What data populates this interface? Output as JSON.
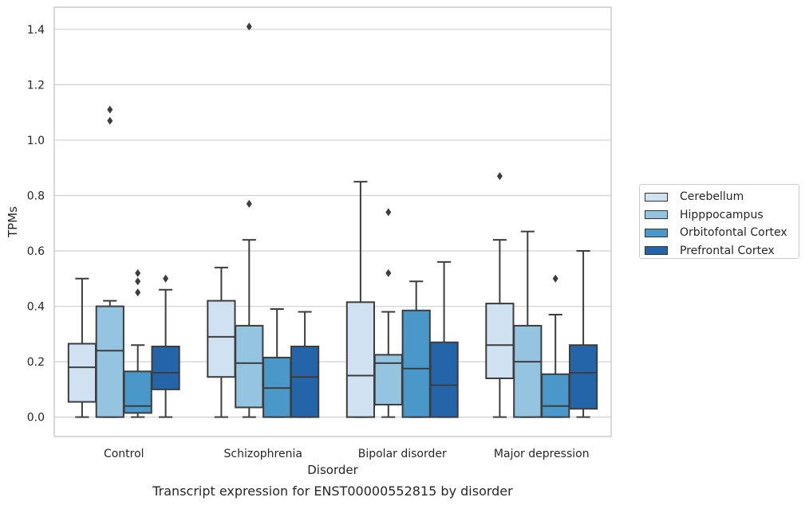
{
  "chart_data": {
    "type": "box",
    "title": "Transcript expression for ENST00000552815 by disorder",
    "xlabel": "Disorder",
    "ylabel": "TPMs",
    "ylim": [
      -0.07,
      1.48
    ],
    "yticks": [
      "0.0",
      "0.2",
      "0.4",
      "0.6",
      "0.8",
      "1.0",
      "1.2",
      "1.4"
    ],
    "grid": true,
    "legend_position": "right",
    "categories": [
      "Control",
      "Schizophrenia",
      "Bipolar disorder",
      "Major depression"
    ],
    "series": [
      {
        "name": "Cerebellum",
        "color": "#d0e1f2",
        "boxes": [
          {
            "whisker_low": 0.0,
            "q1": 0.055,
            "median": 0.18,
            "q3": 0.265,
            "whisker_high": 0.5,
            "outliers": []
          },
          {
            "whisker_low": 0.0,
            "q1": 0.145,
            "median": 0.29,
            "q3": 0.42,
            "whisker_high": 0.54,
            "outliers": []
          },
          {
            "whisker_low": 0.0,
            "q1": 0.0,
            "median": 0.15,
            "q3": 0.415,
            "whisker_high": 0.85,
            "outliers": []
          },
          {
            "whisker_low": 0.0,
            "q1": 0.14,
            "median": 0.26,
            "q3": 0.41,
            "whisker_high": 0.64,
            "outliers": [
              0.87
            ]
          }
        ]
      },
      {
        "name": "Hipppocampus",
        "color": "#94c4df",
        "boxes": [
          {
            "whisker_low": 0.0,
            "q1": 0.0,
            "median": 0.24,
            "q3": 0.4,
            "whisker_high": 0.42,
            "outliers": [
              1.07,
              1.11
            ]
          },
          {
            "whisker_low": 0.0,
            "q1": 0.035,
            "median": 0.195,
            "q3": 0.33,
            "whisker_high": 0.64,
            "outliers": [
              0.77,
              1.41
            ]
          },
          {
            "whisker_low": 0.0,
            "q1": 0.045,
            "median": 0.195,
            "q3": 0.225,
            "whisker_high": 0.38,
            "outliers": [
              0.52,
              0.74
            ]
          },
          {
            "whisker_low": 0.0,
            "q1": 0.0,
            "median": 0.2,
            "q3": 0.33,
            "whisker_high": 0.67,
            "outliers": []
          }
        ]
      },
      {
        "name": "Orbitofontal Cortex",
        "color": "#4a98c9",
        "boxes": [
          {
            "whisker_low": 0.0,
            "q1": 0.015,
            "median": 0.04,
            "q3": 0.165,
            "whisker_high": 0.26,
            "outliers": [
              0.45,
              0.49,
              0.52
            ]
          },
          {
            "whisker_low": 0.0,
            "q1": 0.0,
            "median": 0.105,
            "q3": 0.215,
            "whisker_high": 0.39,
            "outliers": []
          },
          {
            "whisker_low": 0.0,
            "q1": 0.0,
            "median": 0.175,
            "q3": 0.385,
            "whisker_high": 0.49,
            "outliers": []
          },
          {
            "whisker_low": 0.0,
            "q1": 0.0,
            "median": 0.04,
            "q3": 0.155,
            "whisker_high": 0.37,
            "outliers": [
              0.5
            ]
          }
        ]
      },
      {
        "name": "Prefrontal Cortex",
        "color": "#2464a8",
        "boxes": [
          {
            "whisker_low": 0.0,
            "q1": 0.1,
            "median": 0.16,
            "q3": 0.255,
            "whisker_high": 0.46,
            "outliers": [
              0.5
            ]
          },
          {
            "whisker_low": 0.0,
            "q1": 0.0,
            "median": 0.145,
            "q3": 0.255,
            "whisker_high": 0.38,
            "outliers": []
          },
          {
            "whisker_low": 0.0,
            "q1": 0.0,
            "median": 0.115,
            "q3": 0.27,
            "whisker_high": 0.56,
            "outliers": []
          },
          {
            "whisker_low": 0.0,
            "q1": 0.03,
            "median": 0.16,
            "q3": 0.26,
            "whisker_high": 0.6,
            "outliers": []
          }
        ]
      }
    ]
  }
}
